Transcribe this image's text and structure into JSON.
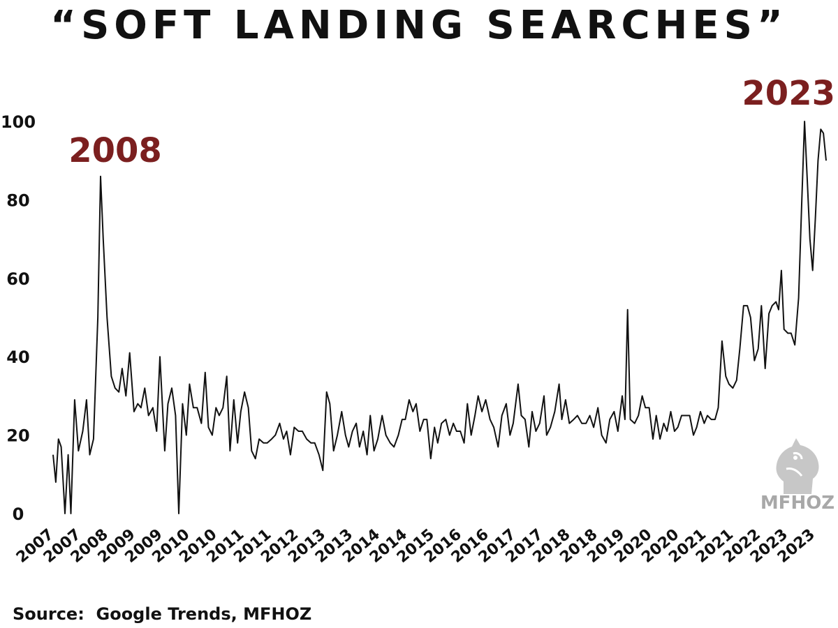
{
  "title": "“SOFT LANDING SEARCHES”",
  "source": "Source:  Google Trends, MFHOZ",
  "watermark": {
    "text": "MFHOZ",
    "icon": "knight-chess-icon"
  },
  "colors": {
    "annotation": "#7b1f1f",
    "line": "#111111",
    "text": "#111111",
    "watermark": "#a8a8a8"
  },
  "chart_data": {
    "type": "line",
    "title": "“SOFT LANDING SEARCHES”",
    "xlabel": "",
    "ylabel": "",
    "ylim": [
      0,
      100
    ],
    "y_ticks": [
      0,
      20,
      40,
      60,
      80,
      100
    ],
    "x_ticks": [
      "2007",
      "2007",
      "2008",
      "2009",
      "2009",
      "2010",
      "2010",
      "2011",
      "2011",
      "2012",
      "2013",
      "2013",
      "2014",
      "2014",
      "2015",
      "2016",
      "2016",
      "2017",
      "2017",
      "2018",
      "2018",
      "2019",
      "2020",
      "2020",
      "2021",
      "2021",
      "2022",
      "2023",
      "2023"
    ],
    "grid": false,
    "legend": "none",
    "annotations": [
      {
        "text": "2008",
        "x": 2008.0,
        "y": 86
      },
      {
        "text": "2023",
        "x": 2023.3,
        "y": 100
      }
    ],
    "series": [
      {
        "points": [
          [
            2007.0,
            15
          ],
          [
            2007.05,
            8
          ],
          [
            2007.1,
            19
          ],
          [
            2007.15,
            17
          ],
          [
            2007.22,
            0
          ],
          [
            2007.28,
            15
          ],
          [
            2007.33,
            0
          ],
          [
            2007.4,
            29
          ],
          [
            2007.47,
            16
          ],
          [
            2007.55,
            21
          ],
          [
            2007.62,
            29
          ],
          [
            2007.68,
            15
          ],
          [
            2007.75,
            19
          ],
          [
            2007.83,
            50
          ],
          [
            2007.88,
            86
          ],
          [
            2007.93,
            70
          ],
          [
            2008.0,
            50
          ],
          [
            2008.08,
            35
          ],
          [
            2008.15,
            32
          ],
          [
            2008.22,
            31
          ],
          [
            2008.28,
            37
          ],
          [
            2008.35,
            30
          ],
          [
            2008.42,
            41
          ],
          [
            2008.5,
            26
          ],
          [
            2008.57,
            28
          ],
          [
            2008.63,
            27
          ],
          [
            2008.7,
            32
          ],
          [
            2008.77,
            25
          ],
          [
            2008.85,
            27
          ],
          [
            2008.92,
            21
          ],
          [
            2008.98,
            40
          ],
          [
            2009.07,
            16
          ],
          [
            2009.13,
            28
          ],
          [
            2009.2,
            32
          ],
          [
            2009.27,
            25
          ],
          [
            2009.33,
            0
          ],
          [
            2009.4,
            28
          ],
          [
            2009.47,
            20
          ],
          [
            2009.53,
            33
          ],
          [
            2009.6,
            27
          ],
          [
            2009.67,
            27
          ],
          [
            2009.75,
            23
          ],
          [
            2009.82,
            36
          ],
          [
            2009.88,
            22
          ],
          [
            2009.95,
            20
          ],
          [
            2010.02,
            27
          ],
          [
            2010.08,
            25
          ],
          [
            2010.15,
            27
          ],
          [
            2010.22,
            35
          ],
          [
            2010.28,
            16
          ],
          [
            2010.35,
            29
          ],
          [
            2010.42,
            18
          ],
          [
            2010.48,
            26
          ],
          [
            2010.55,
            31
          ],
          [
            2010.62,
            27
          ],
          [
            2010.68,
            16
          ],
          [
            2010.75,
            14
          ],
          [
            2010.82,
            19
          ],
          [
            2010.9,
            18
          ],
          [
            2010.97,
            18
          ],
          [
            2011.05,
            19
          ],
          [
            2011.12,
            20
          ],
          [
            2011.2,
            23
          ],
          [
            2011.27,
            19
          ],
          [
            2011.33,
            21
          ],
          [
            2011.4,
            15
          ],
          [
            2011.47,
            22
          ],
          [
            2011.55,
            21
          ],
          [
            2011.62,
            21
          ],
          [
            2011.7,
            19
          ],
          [
            2011.78,
            18
          ],
          [
            2011.85,
            18
          ],
          [
            2011.93,
            15
          ],
          [
            2012.0,
            11
          ],
          [
            2012.07,
            31
          ],
          [
            2012.13,
            28
          ],
          [
            2012.2,
            16
          ],
          [
            2012.27,
            20
          ],
          [
            2012.35,
            26
          ],
          [
            2012.42,
            20
          ],
          [
            2012.48,
            17
          ],
          [
            2012.55,
            21
          ],
          [
            2012.62,
            23
          ],
          [
            2012.68,
            17
          ],
          [
            2012.75,
            21
          ],
          [
            2012.82,
            15
          ],
          [
            2012.88,
            25
          ],
          [
            2012.95,
            16
          ],
          [
            2013.02,
            19
          ],
          [
            2013.1,
            25
          ],
          [
            2013.17,
            20
          ],
          [
            2013.25,
            18
          ],
          [
            2013.32,
            17
          ],
          [
            2013.4,
            20
          ],
          [
            2013.47,
            24
          ],
          [
            2013.53,
            24
          ],
          [
            2013.6,
            29
          ],
          [
            2013.67,
            26
          ],
          [
            2013.73,
            28
          ],
          [
            2013.8,
            21
          ],
          [
            2013.87,
            24
          ],
          [
            2013.93,
            24
          ],
          [
            2014.0,
            14
          ],
          [
            2014.07,
            22
          ],
          [
            2014.13,
            18
          ],
          [
            2014.2,
            23
          ],
          [
            2014.28,
            24
          ],
          [
            2014.35,
            20
          ],
          [
            2014.42,
            23
          ],
          [
            2014.48,
            21
          ],
          [
            2014.55,
            21
          ],
          [
            2014.62,
            18
          ],
          [
            2014.68,
            28
          ],
          [
            2014.75,
            20
          ],
          [
            2014.82,
            25
          ],
          [
            2014.88,
            30
          ],
          [
            2014.95,
            26
          ],
          [
            2015.02,
            29
          ],
          [
            2015.1,
            24
          ],
          [
            2015.17,
            22
          ],
          [
            2015.25,
            17
          ],
          [
            2015.32,
            25
          ],
          [
            2015.4,
            28
          ],
          [
            2015.47,
            20
          ],
          [
            2015.53,
            23
          ],
          [
            2015.62,
            33
          ],
          [
            2015.68,
            25
          ],
          [
            2015.75,
            24
          ],
          [
            2015.82,
            17
          ],
          [
            2015.88,
            26
          ],
          [
            2015.95,
            21
          ],
          [
            2016.02,
            23
          ],
          [
            2016.1,
            30
          ],
          [
            2016.15,
            20
          ],
          [
            2016.22,
            22
          ],
          [
            2016.3,
            26
          ],
          [
            2016.38,
            33
          ],
          [
            2016.43,
            24
          ],
          [
            2016.5,
            29
          ],
          [
            2016.57,
            23
          ],
          [
            2016.65,
            24
          ],
          [
            2016.72,
            25
          ],
          [
            2016.8,
            23
          ],
          [
            2016.88,
            23
          ],
          [
            2016.95,
            25
          ],
          [
            2017.02,
            22
          ],
          [
            2017.1,
            27
          ],
          [
            2017.17,
            20
          ],
          [
            2017.25,
            18
          ],
          [
            2017.32,
            24
          ],
          [
            2017.4,
            26
          ],
          [
            2017.47,
            21
          ],
          [
            2017.55,
            30
          ],
          [
            2017.6,
            24
          ],
          [
            2017.65,
            52
          ],
          [
            2017.7,
            24
          ],
          [
            2017.78,
            23
          ],
          [
            2017.85,
            25
          ],
          [
            2017.92,
            30
          ],
          [
            2017.98,
            27
          ],
          [
            2018.05,
            27
          ],
          [
            2018.12,
            19
          ],
          [
            2018.18,
            25
          ],
          [
            2018.25,
            19
          ],
          [
            2018.32,
            23
          ],
          [
            2018.38,
            21
          ],
          [
            2018.45,
            26
          ],
          [
            2018.52,
            21
          ],
          [
            2018.58,
            22
          ],
          [
            2018.65,
            25
          ],
          [
            2018.72,
            25
          ],
          [
            2018.8,
            25
          ],
          [
            2018.87,
            20
          ],
          [
            2018.93,
            22
          ],
          [
            2019.0,
            26
          ],
          [
            2019.07,
            23
          ],
          [
            2019.13,
            25
          ],
          [
            2019.2,
            24
          ],
          [
            2019.27,
            24
          ],
          [
            2019.33,
            27
          ],
          [
            2019.4,
            44
          ],
          [
            2019.47,
            35
          ],
          [
            2019.53,
            33
          ],
          [
            2019.6,
            32
          ],
          [
            2019.67,
            34
          ],
          [
            2019.73,
            42
          ],
          [
            2019.8,
            53
          ],
          [
            2019.87,
            53
          ],
          [
            2019.93,
            50
          ],
          [
            2020.0,
            39
          ],
          [
            2020.07,
            42
          ],
          [
            2020.13,
            53
          ],
          [
            2020.2,
            37
          ],
          [
            2020.27,
            51
          ],
          [
            2020.33,
            53
          ],
          [
            2020.4,
            54
          ],
          [
            2020.45,
            52
          ],
          [
            2020.5,
            62
          ],
          [
            2020.55,
            47
          ],
          [
            2020.62,
            46
          ],
          [
            2020.68,
            46
          ],
          [
            2020.75,
            43
          ],
          [
            2020.82,
            55
          ],
          [
            2020.88,
            80
          ],
          [
            2020.93,
            100
          ],
          [
            2020.98,
            85
          ],
          [
            2021.03,
            70
          ],
          [
            2021.08,
            62
          ],
          [
            2021.13,
            75
          ],
          [
            2021.18,
            90
          ],
          [
            2021.23,
            98
          ],
          [
            2021.28,
            97
          ],
          [
            2021.33,
            90
          ]
        ]
      }
    ]
  }
}
